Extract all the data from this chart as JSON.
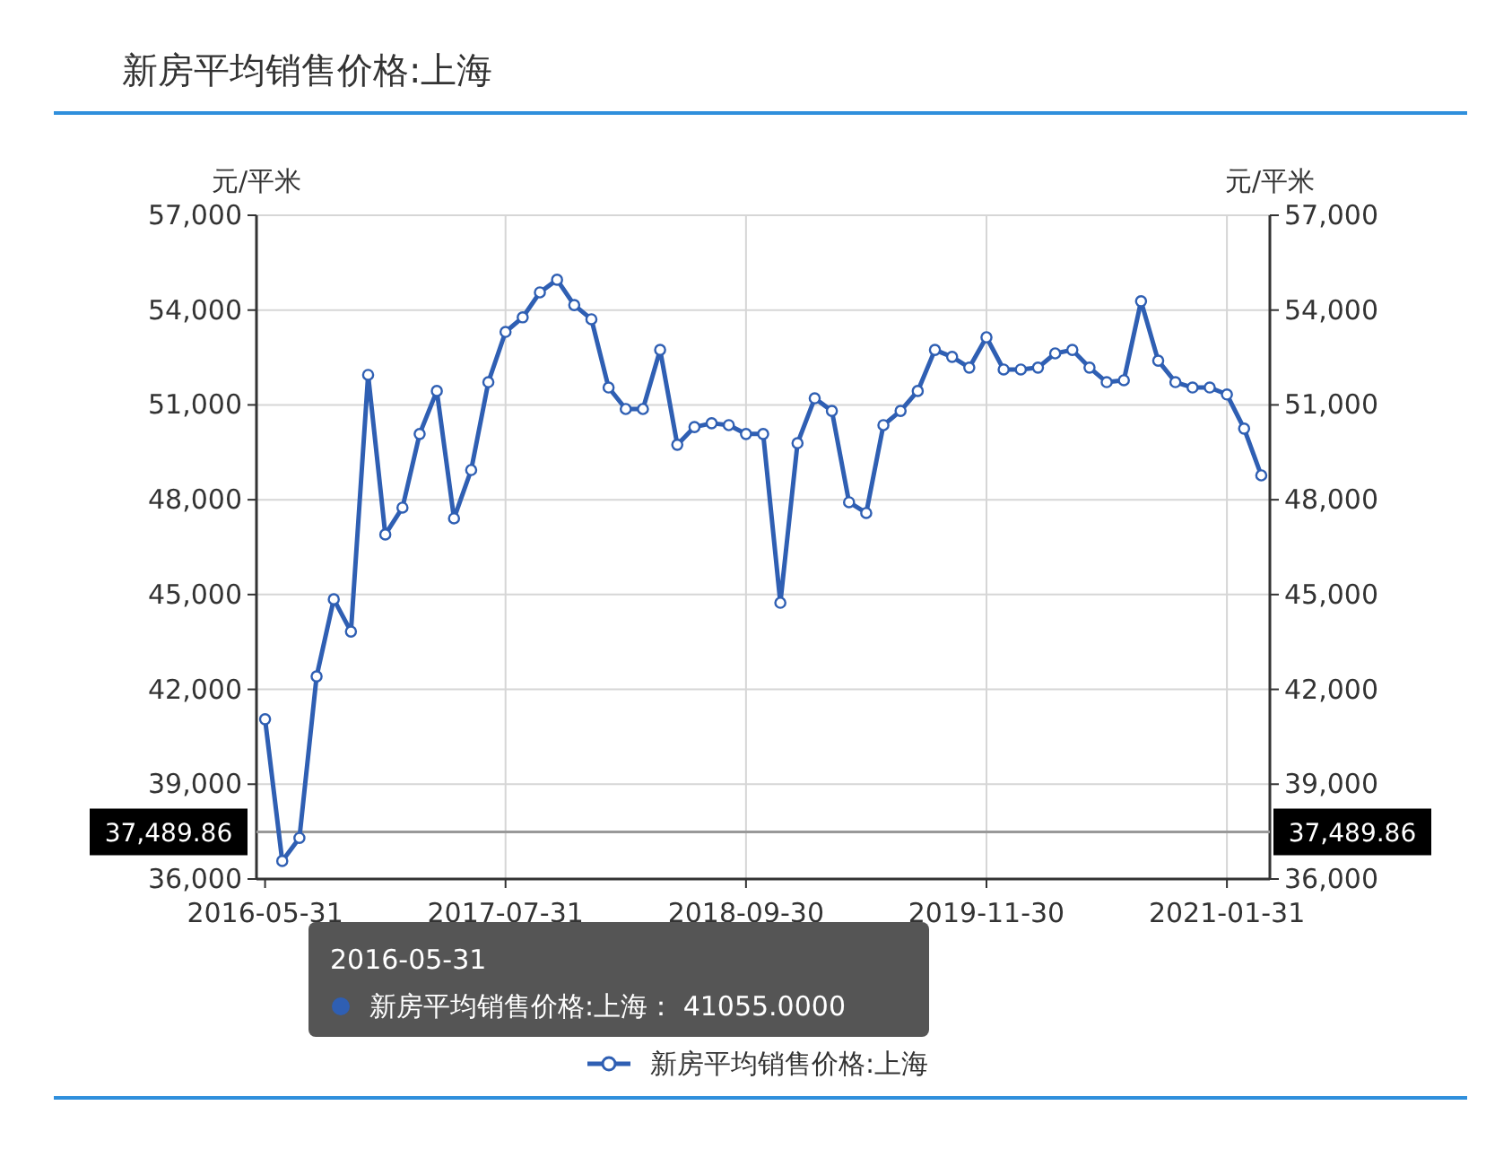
{
  "chart_data": {
    "type": "line",
    "title": "新房平均销售价格:上海",
    "ylabel": "元/平米",
    "y2label": "元/平米",
    "categories": [
      "2016-05-31",
      null,
      null,
      null,
      null,
      null,
      null,
      null,
      null,
      null,
      null,
      null,
      null,
      null,
      "2017-07-31",
      null,
      null,
      null,
      null,
      null,
      null,
      null,
      null,
      null,
      null,
      null,
      null,
      null,
      "2018-09-30",
      null,
      null,
      null,
      null,
      null,
      null,
      null,
      null,
      null,
      null,
      null,
      null,
      null,
      "2019-11-30",
      null,
      null,
      null,
      null,
      null,
      null,
      null,
      null,
      null,
      null,
      null,
      null,
      null,
      "2021-01-31",
      null,
      null
    ],
    "series": [
      {
        "name": "新房平均销售价格:上海",
        "color": "#2f5fb3",
        "values": [
          41055,
          36570,
          37300,
          42410,
          44850,
          43830,
          51950,
          46900,
          47750,
          50080,
          51440,
          47410,
          48940,
          51720,
          53310,
          53770,
          54560,
          54960,
          54160,
          53710,
          51550,
          50870,
          50870,
          52740,
          49740,
          50300,
          50420,
          50360,
          50080,
          50080,
          44740,
          49790,
          51210,
          50810,
          47920,
          47580,
          50360,
          50810,
          51440,
          52740,
          52520,
          52180,
          53140,
          52120,
          52120,
          52180,
          52630,
          52740,
          52180,
          51720,
          51780,
          54280,
          52400,
          51720,
          51550,
          51550,
          51330,
          50250,
          48770
        ]
      }
    ],
    "ylim": [
      36000,
      57000
    ],
    "yticks": [
      {
        "value": 36000,
        "label": "36,000"
      },
      {
        "value": 39000,
        "label": "39,000"
      },
      {
        "value": 42000,
        "label": "42,000"
      },
      {
        "value": 45000,
        "label": "45,000"
      },
      {
        "value": 48000,
        "label": "48,000"
      },
      {
        "value": 51000,
        "label": "51,000"
      },
      {
        "value": 54000,
        "label": "54,000"
      },
      {
        "value": 57000,
        "label": "57,000"
      }
    ],
    "y2lim": [
      36000,
      57000
    ],
    "y2ticks": [
      {
        "value": 36000,
        "label": "36,000"
      },
      {
        "value": 39000,
        "label": "39,000"
      },
      {
        "value": 42000,
        "label": "42,000"
      },
      {
        "value": 45000,
        "label": "45,000"
      },
      {
        "value": 48000,
        "label": "48,000"
      },
      {
        "value": 51000,
        "label": "51,000"
      },
      {
        "value": 54000,
        "label": "54,000"
      },
      {
        "value": 57000,
        "label": "57,000"
      }
    ],
    "ref_lines": [
      {
        "axis": "y",
        "value": 37489.86,
        "label": "37,489.86",
        "color": "#999999"
      }
    ],
    "annotations": [
      "2016-05-31",
      "新房平均销售价格:上海：  41055.0000"
    ],
    "grid": true,
    "legend": "bottom",
    "marker": "circle",
    "line_style": "solid"
  }
}
